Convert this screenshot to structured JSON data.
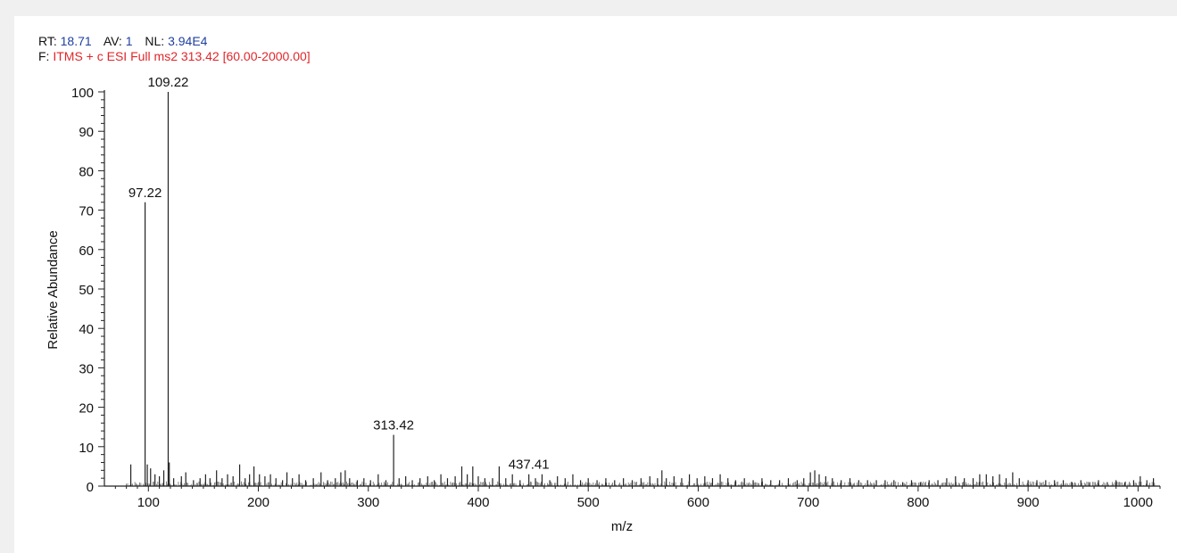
{
  "header": {
    "rt_label": "RT:",
    "rt_value": "18.71",
    "av_label": "AV:",
    "av_value": "1",
    "nl_label": "NL:",
    "nl_value": "3.94E4",
    "f_label": "F:",
    "f_value": "ITMS + c ESI Full ms2 313.42 [60.00-2000.00]"
  },
  "colors": {
    "header_value_blue": "#1f3f9f",
    "header_value_red": "#e0262b",
    "spectrum_line": "#222222",
    "axis": "#222222"
  },
  "chart_data": {
    "type": "bar",
    "chart_style": "mass-spectrum stick plot",
    "xlabel": "m/z",
    "ylabel": "Relative Abundance",
    "xlim": [
      60,
      1020
    ],
    "ylim": [
      0,
      100
    ],
    "x_ticks": [
      100,
      200,
      300,
      400,
      500,
      600,
      700,
      800,
      900,
      1000
    ],
    "y_ticks": [
      0,
      10,
      20,
      30,
      40,
      50,
      60,
      70,
      80,
      90,
      100
    ],
    "grid": false,
    "labeled_peaks": [
      {
        "label": "109.22",
        "x": 118,
        "y": 100
      },
      {
        "label": "97.22",
        "x": 97,
        "y": 72
      },
      {
        "label": "313.42",
        "x": 323,
        "y": 13
      },
      {
        "label": "437.41",
        "x": 446,
        "y": 3
      }
    ],
    "peaks": [
      {
        "x": 84,
        "y": 5.5
      },
      {
        "x": 97,
        "y": 72
      },
      {
        "x": 99,
        "y": 5.5
      },
      {
        "x": 102,
        "y": 4.5
      },
      {
        "x": 106,
        "y": 3
      },
      {
        "x": 110,
        "y": 2.5
      },
      {
        "x": 114,
        "y": 4
      },
      {
        "x": 118,
        "y": 100
      },
      {
        "x": 119,
        "y": 6
      },
      {
        "x": 123,
        "y": 2
      },
      {
        "x": 130,
        "y": 2.5
      },
      {
        "x": 134,
        "y": 3.5
      },
      {
        "x": 141,
        "y": 1.5
      },
      {
        "x": 147,
        "y": 2
      },
      {
        "x": 152,
        "y": 3
      },
      {
        "x": 156,
        "y": 2
      },
      {
        "x": 162,
        "y": 4
      },
      {
        "x": 167,
        "y": 2
      },
      {
        "x": 172,
        "y": 3
      },
      {
        "x": 177,
        "y": 2.5
      },
      {
        "x": 183,
        "y": 5.5
      },
      {
        "x": 188,
        "y": 2
      },
      {
        "x": 192,
        "y": 3
      },
      {
        "x": 196,
        "y": 5
      },
      {
        "x": 201,
        "y": 3
      },
      {
        "x": 206,
        "y": 2.5
      },
      {
        "x": 211,
        "y": 3
      },
      {
        "x": 216,
        "y": 2
      },
      {
        "x": 222,
        "y": 1.5
      },
      {
        "x": 226,
        "y": 3.5
      },
      {
        "x": 231,
        "y": 2
      },
      {
        "x": 237,
        "y": 3
      },
      {
        "x": 243,
        "y": 1.5
      },
      {
        "x": 250,
        "y": 2
      },
      {
        "x": 257,
        "y": 3.5
      },
      {
        "x": 263,
        "y": 1.5
      },
      {
        "x": 270,
        "y": 2
      },
      {
        "x": 275,
        "y": 3.5
      },
      {
        "x": 279,
        "y": 4
      },
      {
        "x": 283,
        "y": 2
      },
      {
        "x": 290,
        "y": 1.5
      },
      {
        "x": 296,
        "y": 2
      },
      {
        "x": 302,
        "y": 1.5
      },
      {
        "x": 309,
        "y": 3
      },
      {
        "x": 316,
        "y": 1.5
      },
      {
        "x": 323,
        "y": 13
      },
      {
        "x": 328,
        "y": 2
      },
      {
        "x": 334,
        "y": 2.5
      },
      {
        "x": 340,
        "y": 1.5
      },
      {
        "x": 347,
        "y": 2
      },
      {
        "x": 354,
        "y": 2.5
      },
      {
        "x": 360,
        "y": 1.5
      },
      {
        "x": 366,
        "y": 3
      },
      {
        "x": 372,
        "y": 2
      },
      {
        "x": 379,
        "y": 2.5
      },
      {
        "x": 385,
        "y": 5
      },
      {
        "x": 390,
        "y": 3
      },
      {
        "x": 395,
        "y": 5
      },
      {
        "x": 400,
        "y": 2.5
      },
      {
        "x": 406,
        "y": 2
      },
      {
        "x": 413,
        "y": 2
      },
      {
        "x": 419,
        "y": 5
      },
      {
        "x": 425,
        "y": 2
      },
      {
        "x": 431,
        "y": 3
      },
      {
        "x": 438,
        "y": 1.5
      },
      {
        "x": 446,
        "y": 3
      },
      {
        "x": 452,
        "y": 2
      },
      {
        "x": 458,
        "y": 3
      },
      {
        "x": 465,
        "y": 1.5
      },
      {
        "x": 472,
        "y": 2.5
      },
      {
        "x": 479,
        "y": 2
      },
      {
        "x": 486,
        "y": 3
      },
      {
        "x": 493,
        "y": 1.5
      },
      {
        "x": 500,
        "y": 2
      },
      {
        "x": 508,
        "y": 1.5
      },
      {
        "x": 516,
        "y": 2
      },
      {
        "x": 524,
        "y": 1.5
      },
      {
        "x": 532,
        "y": 2
      },
      {
        "x": 540,
        "y": 1.5
      },
      {
        "x": 548,
        "y": 2
      },
      {
        "x": 556,
        "y": 2.5
      },
      {
        "x": 563,
        "y": 2
      },
      {
        "x": 567,
        "y": 4
      },
      {
        "x": 571,
        "y": 2
      },
      {
        "x": 578,
        "y": 2.5
      },
      {
        "x": 585,
        "y": 2
      },
      {
        "x": 592,
        "y": 3
      },
      {
        "x": 599,
        "y": 2
      },
      {
        "x": 606,
        "y": 2.5
      },
      {
        "x": 613,
        "y": 2
      },
      {
        "x": 620,
        "y": 3
      },
      {
        "x": 627,
        "y": 2
      },
      {
        "x": 634,
        "y": 1.5
      },
      {
        "x": 642,
        "y": 2
      },
      {
        "x": 650,
        "y": 1.5
      },
      {
        "x": 658,
        "y": 2
      },
      {
        "x": 666,
        "y": 1.5
      },
      {
        "x": 674,
        "y": 1.5
      },
      {
        "x": 682,
        "y": 2
      },
      {
        "x": 690,
        "y": 1.5
      },
      {
        "x": 696,
        "y": 2
      },
      {
        "x": 702,
        "y": 3.5
      },
      {
        "x": 706,
        "y": 4
      },
      {
        "x": 710,
        "y": 3
      },
      {
        "x": 716,
        "y": 2.5
      },
      {
        "x": 722,
        "y": 2
      },
      {
        "x": 730,
        "y": 1.5
      },
      {
        "x": 738,
        "y": 2
      },
      {
        "x": 746,
        "y": 1.5
      },
      {
        "x": 754,
        "y": 1.5
      },
      {
        "x": 762,
        "y": 1.5
      },
      {
        "x": 770,
        "y": 1.5
      },
      {
        "x": 778,
        "y": 1.5
      },
      {
        "x": 786,
        "y": 1
      },
      {
        "x": 794,
        "y": 1.5
      },
      {
        "x": 802,
        "y": 1
      },
      {
        "x": 810,
        "y": 1.5
      },
      {
        "x": 818,
        "y": 1.5
      },
      {
        "x": 826,
        "y": 2
      },
      {
        "x": 834,
        "y": 2.5
      },
      {
        "x": 842,
        "y": 2
      },
      {
        "x": 850,
        "y": 2
      },
      {
        "x": 856,
        "y": 3
      },
      {
        "x": 862,
        "y": 3
      },
      {
        "x": 868,
        "y": 2.5
      },
      {
        "x": 874,
        "y": 3
      },
      {
        "x": 880,
        "y": 2
      },
      {
        "x": 886,
        "y": 3.5
      },
      {
        "x": 892,
        "y": 2
      },
      {
        "x": 900,
        "y": 1.5
      },
      {
        "x": 908,
        "y": 1.5
      },
      {
        "x": 916,
        "y": 1.5
      },
      {
        "x": 924,
        "y": 1.5
      },
      {
        "x": 932,
        "y": 1.5
      },
      {
        "x": 940,
        "y": 1
      },
      {
        "x": 948,
        "y": 1.5
      },
      {
        "x": 956,
        "y": 1
      },
      {
        "x": 964,
        "y": 1.5
      },
      {
        "x": 972,
        "y": 1
      },
      {
        "x": 980,
        "y": 1.5
      },
      {
        "x": 988,
        "y": 1
      },
      {
        "x": 996,
        "y": 1.5
      },
      {
        "x": 1002,
        "y": 2.5
      },
      {
        "x": 1008,
        "y": 1.5
      },
      {
        "x": 1014,
        "y": 2
      }
    ]
  }
}
